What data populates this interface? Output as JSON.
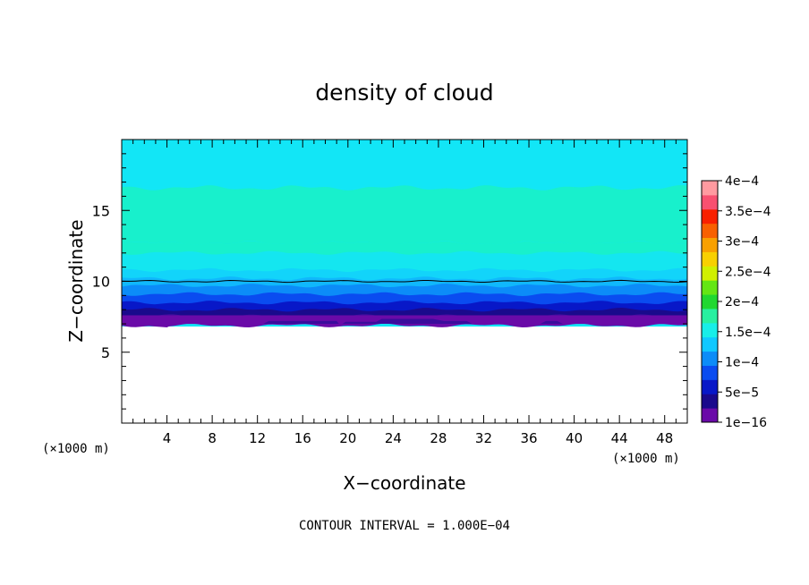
{
  "chart_data": {
    "type": "heatmap",
    "title": "density of cloud",
    "xlabel": "X−coordinate",
    "ylabel": "Z−coordinate",
    "x_unit_left": "(×1000 m)",
    "x_unit_right": "(×1000 m)",
    "footer": "CONTOUR INTERVAL = 1.000E−04",
    "xlim": [
      0,
      50
    ],
    "ylim": [
      0,
      20
    ],
    "x_ticks": [
      4,
      8,
      12,
      16,
      20,
      24,
      28,
      32,
      36,
      40,
      44,
      48
    ],
    "y_ticks": [
      5,
      10,
      15
    ],
    "grid": false,
    "colorbar": {
      "placement": "right",
      "labels": [
        "4e−4",
        "3.5e−4",
        "3e−4",
        "2.5e−4",
        "2e−4",
        "1.5e−4",
        "1e−4",
        "5e−5",
        "1e−16"
      ],
      "label_values": [
        0.0004,
        0.00035,
        0.0003,
        0.00025,
        0.0002,
        0.00015,
        0.0001,
        5e-05,
        1e-16
      ],
      "colors_bottom_to_top": [
        "#6a0aa8",
        "#1a0a8c",
        "#0818c8",
        "#0a4cf0",
        "#0c8cf8",
        "#10c8ff",
        "#18eee8",
        "#28f0a0",
        "#20d830",
        "#64e614",
        "#d0f000",
        "#f8d000",
        "#f8a000",
        "#f86000",
        "#f82000",
        "#f85070",
        "#ff9aa0"
      ]
    },
    "field": {
      "cloud_base_z": 7.0,
      "contour_1e-4_z": 10.0,
      "max_band_z": [
        12.7,
        16.6
      ],
      "top_z": 20
    },
    "colors": {
      "upper_cyan": "#12e6f6",
      "max_band": "#18f0cc",
      "base_purple": "#6a0aa8"
    }
  }
}
